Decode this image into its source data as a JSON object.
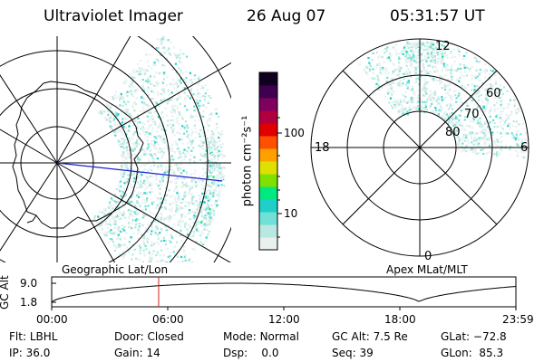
{
  "header": {
    "instrument": "Ultraviolet Imager",
    "date": "26 Aug 07",
    "time": "05:31:57 UT"
  },
  "left_panel": {
    "caption": "Geographic Lat/Lon"
  },
  "right_panel": {
    "caption": "Apex MLat/MLT",
    "mlt_labels": [
      "12",
      "18",
      "6",
      "0"
    ],
    "mlat_labels": [
      "60",
      "70",
      "80"
    ]
  },
  "colorbar": {
    "unit_label": "photon cm⁻²s⁻¹",
    "tick_labels": [
      "100",
      "10"
    ],
    "colors": [
      "#e8f0f0",
      "#b8e8e0",
      "#70e0d8",
      "#20d0c8",
      "#00e880",
      "#80e000",
      "#e0e000",
      "#ffa000",
      "#ff5000",
      "#e00000",
      "#b00040",
      "#800060",
      "#400050",
      "#100020"
    ]
  },
  "altitude_strip": {
    "y_axis_label": "GC Alt",
    "y_ticks": [
      "9.0",
      "1.8"
    ],
    "x_ticks": [
      "00:00",
      "06:00",
      "12:00",
      "18:00",
      "23:59"
    ],
    "cursor_time_hours": 5.53
  },
  "status": {
    "row1": [
      {
        "label": "Flt:",
        "value": "LBHL"
      },
      {
        "label": "Door:",
        "value": "Closed"
      },
      {
        "label": "Mode:",
        "value": "Normal"
      },
      {
        "label": "GC Alt:",
        "value": "7.5 Re"
      },
      {
        "label": "GLat:",
        "value": "−72.8"
      }
    ],
    "row2": [
      {
        "label": "IP:",
        "value": "36.0"
      },
      {
        "label": "Gain:",
        "value": "14"
      },
      {
        "label": "Dsp:",
        "value": "0.0"
      },
      {
        "label": "Seq:",
        "value": "39"
      },
      {
        "label": "GLon:",
        "value": "85.3"
      }
    ]
  }
}
